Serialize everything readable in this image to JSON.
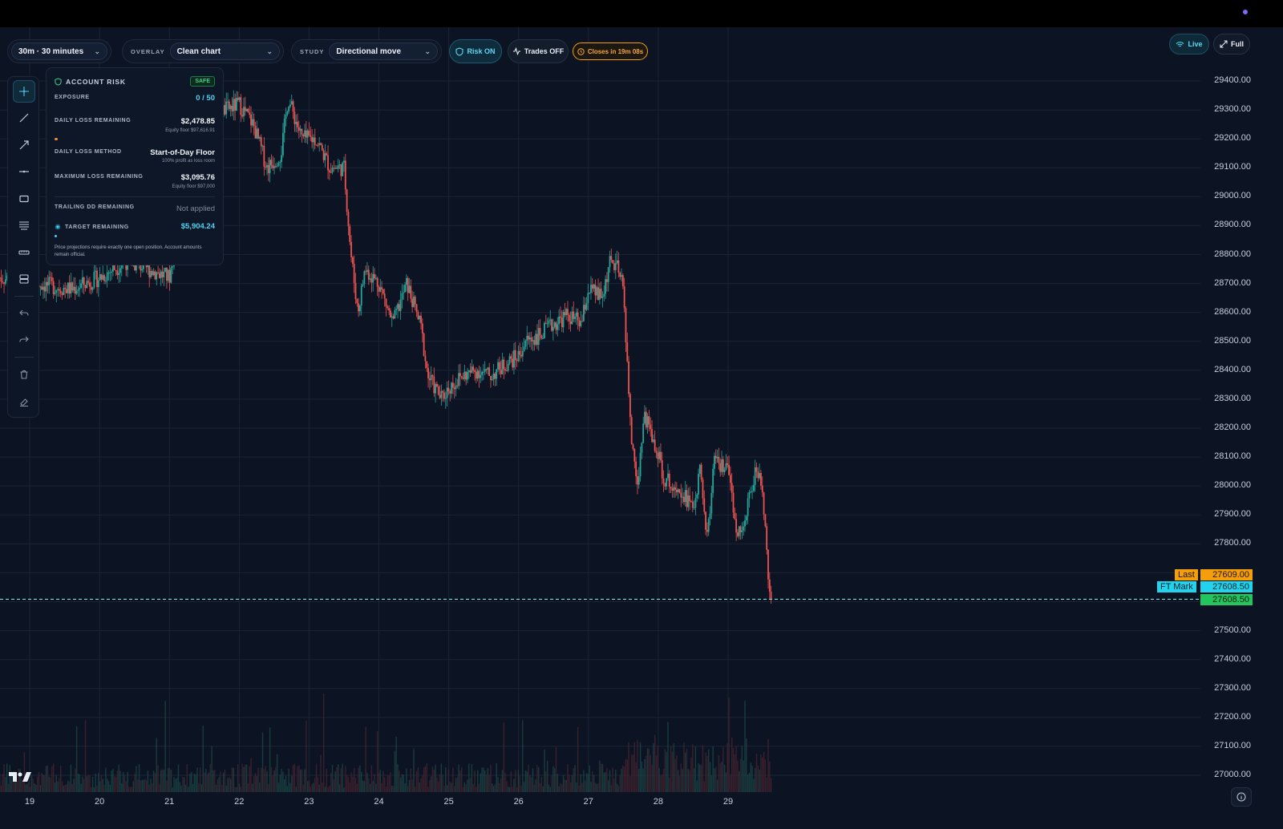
{
  "toolbar": {
    "timeframe": "30m · 30 minutes",
    "overlay_label": "OVERLAY",
    "overlay_value": "Clean chart",
    "study_label": "STUDY",
    "study_value": "Directional move",
    "risk_btn": "Risk ON",
    "trades_btn": "Trades OFF",
    "closes_btn": "Closes in 19m 08s",
    "live_btn": "Live",
    "full_btn": "Full"
  },
  "risk_panel": {
    "title": "ACCOUNT RISK",
    "badge": "SAFE",
    "exposure_label": "EXPOSURE",
    "exposure_value": "0 / 50",
    "daily_loss_label": "DAILY LOSS REMAINING",
    "daily_loss_value": "$2,478.85",
    "daily_loss_sub": "Equity floor $97,616.91",
    "method_label": "DAILY LOSS METHOD",
    "method_value": "Start-of-Day Floor",
    "method_sub": "100% profit as loss room",
    "max_loss_label": "MAXIMUM LOSS REMAINING",
    "max_loss_value": "$3,095.76",
    "max_loss_sub": "Equity floor $97,000",
    "trailing_label": "TRAILING DD REMAINING",
    "trailing_value": "Not applied",
    "target_label": "TARGET REMAINING",
    "target_value": "$5,904.24",
    "note": "Price projections require exactly one open position. Account amounts remain official."
  },
  "price_tags": {
    "last_label": "Last",
    "last_value": "27609.00",
    "mark_label": "FT Mark",
    "mark_value": "27608.50",
    "current_value": "27608.50"
  },
  "colors": {
    "up": "#26a69a",
    "down": "#ef5350",
    "accent": "#22d3ee",
    "orange": "#f59e0b",
    "green": "#22c55e"
  },
  "chart_data": {
    "type": "candlestick",
    "x_ticks": [
      "19",
      "20",
      "21",
      "22",
      "23",
      "24",
      "25",
      "26",
      "27",
      "28",
      "29"
    ],
    "y_ticks": [
      "29400.00",
      "29300.00",
      "29200.00",
      "29100.00",
      "29000.00",
      "28900.00",
      "28800.00",
      "28700.00",
      "28600.00",
      "28500.00",
      "28400.00",
      "28300.00",
      "28200.00",
      "28100.00",
      "28000.00",
      "27900.00",
      "27800.00",
      "27500.00",
      "27400.00",
      "27300.00",
      "27200.00",
      "27100.00",
      "27000.00"
    ],
    "ylim": [
      26950,
      29500
    ],
    "price_path": [
      [
        18.6,
        28720
      ],
      [
        19.1,
        28700
      ],
      [
        19.6,
        28680
      ],
      [
        20.0,
        28720
      ],
      [
        20.4,
        28780
      ],
      [
        20.8,
        28740
      ],
      [
        21.0,
        28720
      ],
      [
        21.4,
        29250
      ],
      [
        21.8,
        29300
      ],
      [
        22.0,
        29320
      ],
      [
        22.2,
        29250
      ],
      [
        22.4,
        29100
      ],
      [
        22.6,
        29150
      ],
      [
        22.7,
        29340
      ],
      [
        22.9,
        29200
      ],
      [
        23.1,
        29200
      ],
      [
        23.3,
        29100
      ],
      [
        23.5,
        29100
      ],
      [
        23.6,
        28800
      ],
      [
        23.7,
        28600
      ],
      [
        23.8,
        28750
      ],
      [
        24.0,
        28700
      ],
      [
        24.2,
        28560
      ],
      [
        24.4,
        28700
      ],
      [
        24.6,
        28550
      ],
      [
        24.7,
        28380
      ],
      [
        24.9,
        28300
      ],
      [
        25.0,
        28340
      ],
      [
        25.2,
        28380
      ],
      [
        25.4,
        28400
      ],
      [
        25.6,
        28380
      ],
      [
        25.8,
        28420
      ],
      [
        26.0,
        28450
      ],
      [
        26.1,
        28500
      ],
      [
        26.3,
        28520
      ],
      [
        26.5,
        28560
      ],
      [
        26.7,
        28590
      ],
      [
        26.9,
        28560
      ],
      [
        27.0,
        28680
      ],
      [
        27.2,
        28650
      ],
      [
        27.3,
        28770
      ],
      [
        27.4,
        28760
      ],
      [
        27.5,
        28680
      ],
      [
        27.6,
        28200
      ],
      [
        27.7,
        28000
      ],
      [
        27.8,
        28250
      ],
      [
        27.9,
        28180
      ],
      [
        28.0,
        28100
      ],
      [
        28.1,
        28020
      ],
      [
        28.3,
        28000
      ],
      [
        28.5,
        27920
      ],
      [
        28.6,
        28050
      ],
      [
        28.7,
        27820
      ],
      [
        28.8,
        28080
      ],
      [
        29.0,
        28050
      ],
      [
        29.1,
        27860
      ],
      [
        29.2,
        27850
      ],
      [
        29.3,
        27950
      ],
      [
        29.4,
        28060
      ],
      [
        29.5,
        27970
      ],
      [
        29.6,
        27609
      ]
    ],
    "current_price": 27608.5
  }
}
